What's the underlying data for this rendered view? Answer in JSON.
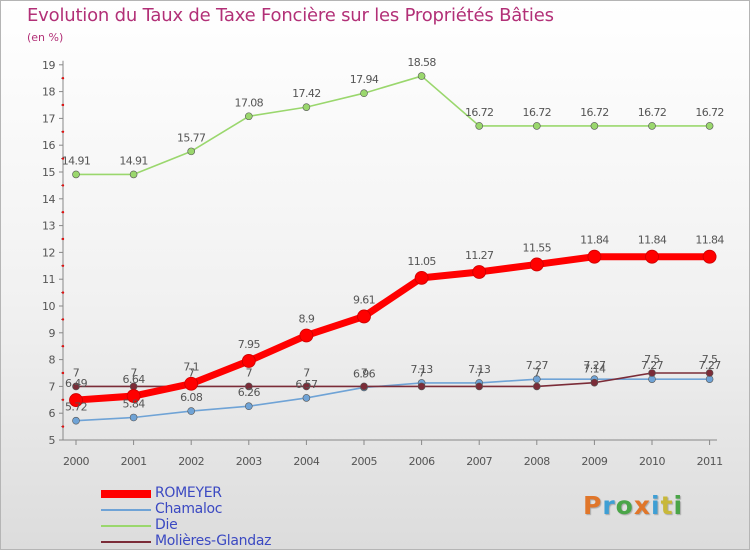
{
  "title": "Evolution du Taux de Taxe Foncière sur les Propriétés Bâties",
  "unit": "(en %)",
  "logo": {
    "letters": [
      "P",
      "r",
      "o",
      "x",
      "i",
      "t",
      "i"
    ],
    "colors": [
      "#e0762a",
      "#3f9fd4",
      "#4aa548",
      "#e0762a",
      "#3f9fd4",
      "#c8b83a",
      "#4aa548"
    ]
  },
  "chart_data": {
    "type": "line",
    "x": [
      "2000",
      "2001",
      "2002",
      "2003",
      "2004",
      "2005",
      "2006",
      "2007",
      "2008",
      "2009",
      "2010",
      "2011"
    ],
    "ylim": [
      5,
      19
    ],
    "yticks": [
      "5",
      "6",
      "7",
      "8",
      "9",
      "10",
      "11",
      "12",
      "13",
      "14",
      "15",
      "16",
      "17",
      "18",
      "19"
    ],
    "grid": false,
    "legend_position": "bottom-left",
    "series": [
      {
        "name": "ROMEYER",
        "color": "#ff0000",
        "values": [
          6.49,
          6.64,
          7.1,
          7.95,
          8.9,
          9.61,
          11.05,
          11.27,
          11.55,
          11.84,
          11.84,
          11.84
        ],
        "labels": [
          "6.49",
          "6.64",
          "7.1",
          "7.95",
          "8.9",
          "9.61",
          "11.05",
          "11.27",
          "11.55",
          "11.84",
          "11.84",
          "11.84"
        ]
      },
      {
        "name": "Chamaloc",
        "color": "#6fa3d6",
        "values": [
          5.72,
          5.84,
          6.08,
          6.26,
          6.57,
          6.96,
          7.13,
          7.13,
          7.27,
          7.27,
          7.27,
          7.27
        ],
        "labels": [
          "5.72",
          "5.84",
          "6.08",
          "6.26",
          "6.57",
          "6.96",
          "7.13",
          "7.13",
          "7.27",
          "7.27",
          "7.27",
          "7.27"
        ]
      },
      {
        "name": "Die",
        "color": "#9ad76d",
        "values": [
          14.91,
          14.91,
          15.77,
          17.08,
          17.42,
          17.94,
          18.58,
          16.72,
          16.72,
          16.72,
          16.72,
          16.72
        ],
        "labels": [
          "14.91",
          "14.91",
          "15.77",
          "17.08",
          "17.42",
          "17.94",
          "18.58",
          "16.72",
          "16.72",
          "16.72",
          "16.72",
          "16.72"
        ]
      },
      {
        "name": "Molières-Glandaz",
        "color": "#7b2c38",
        "values": [
          7,
          7,
          7,
          7,
          7,
          7,
          7,
          7,
          7,
          7.14,
          7.5,
          7.5
        ],
        "labels": [
          "7",
          "7",
          "7",
          "7",
          "7",
          "7",
          "7",
          "7",
          "7",
          "7.14",
          "7.5",
          "7.5"
        ]
      }
    ]
  }
}
